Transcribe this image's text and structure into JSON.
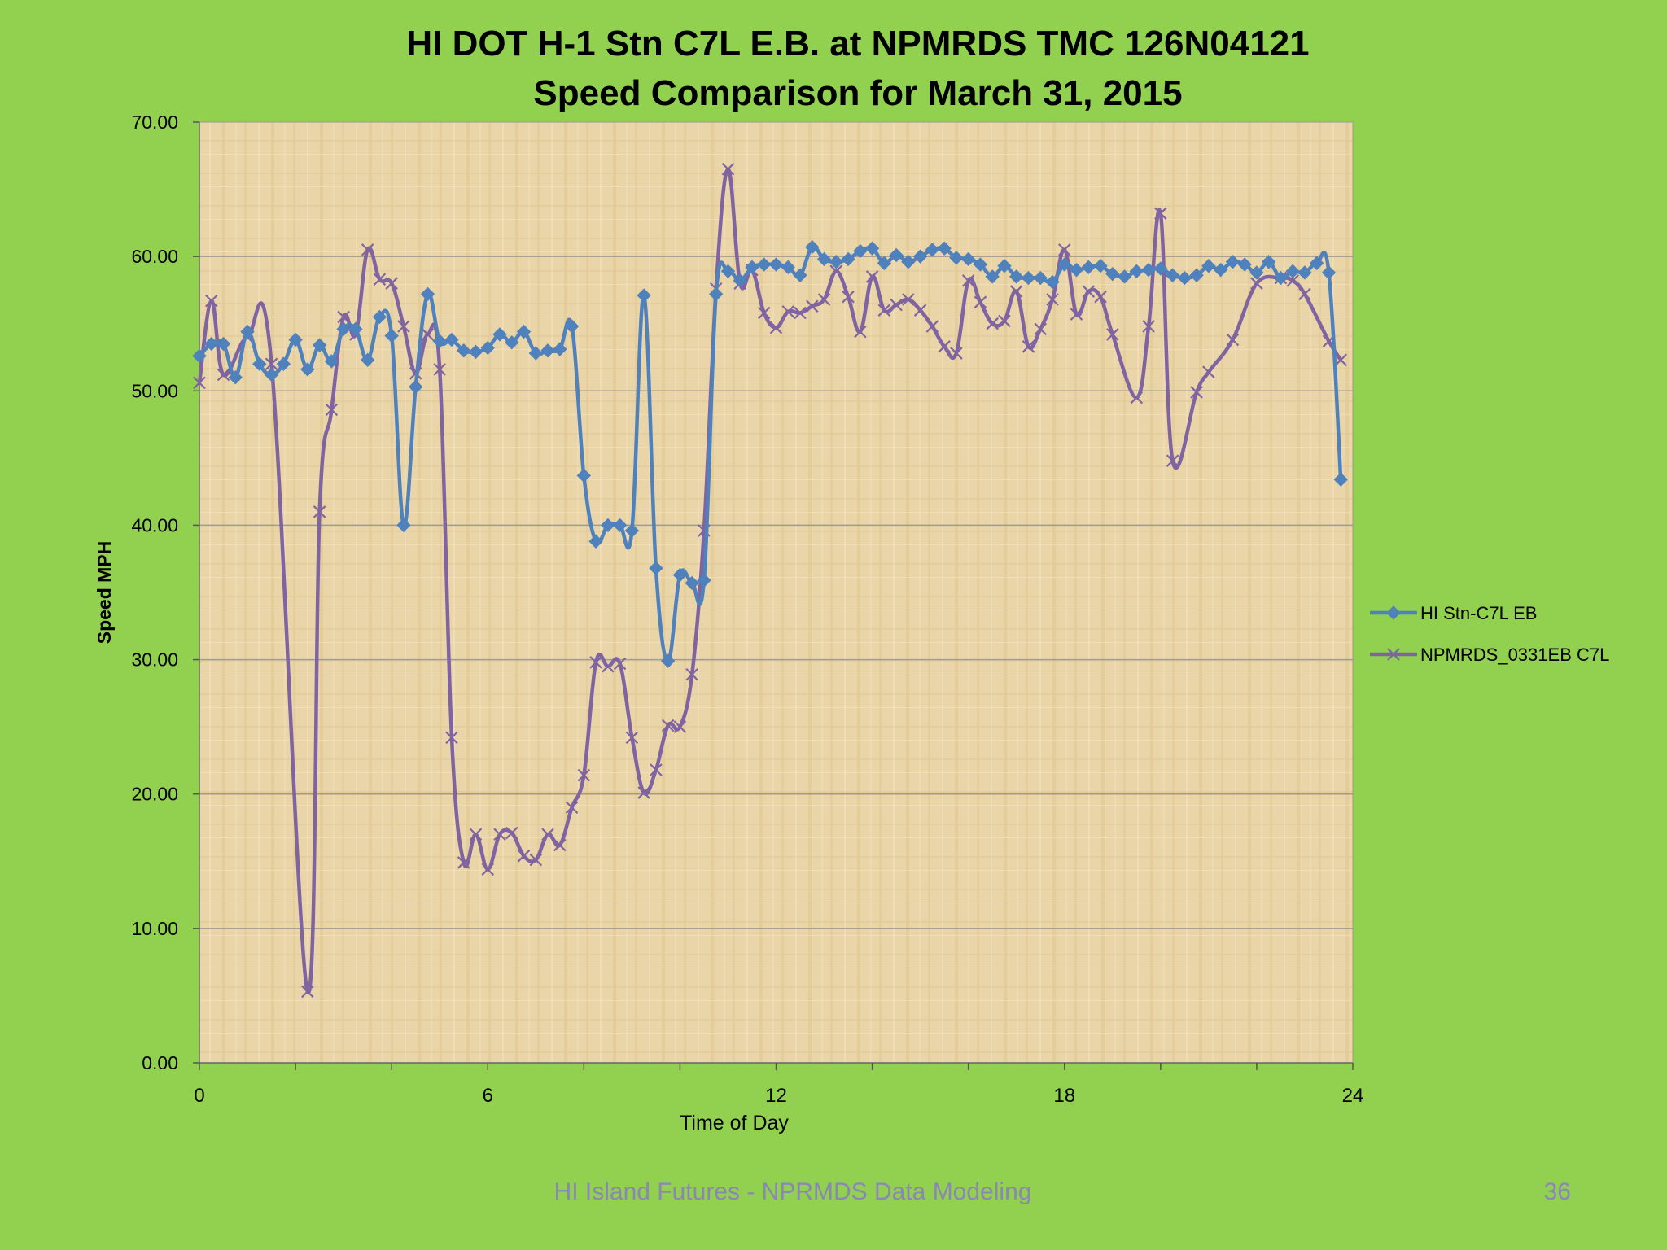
{
  "slide": {
    "footer": "HI Island Futures - NPRMDS Data Modeling",
    "page_number": "36"
  },
  "colors": {
    "background": "#92d050",
    "plot_area": "#ead5a8",
    "series_station": "#4f81bd",
    "series_npmrds": "#8064a2",
    "gridline": "#9e9a8e"
  },
  "chart_data": {
    "type": "line",
    "title": "HI DOT H-1 Stn C7L E.B. at NPMRDS TMC 126N04121",
    "subtitle": "Speed Comparison for March 31, 2015",
    "xlabel": "Time of Day",
    "ylabel": "Speed MPH",
    "xlim": [
      0,
      24
    ],
    "ylim": [
      0,
      70
    ],
    "x_ticks": [
      "0",
      "6",
      "12",
      "18",
      "24"
    ],
    "y_ticks": [
      "0.00",
      "10.00",
      "20.00",
      "30.00",
      "40.00",
      "50.00",
      "60.00",
      "70.00"
    ],
    "grid": true,
    "legend_position": "right",
    "series": [
      {
        "name": "HI Stn-C7L EB",
        "marker": "diamond",
        "points": [
          [
            0.0,
            52.6
          ],
          [
            0.25,
            53.5
          ],
          [
            0.5,
            53.5
          ],
          [
            0.75,
            51.0
          ],
          [
            1.0,
            54.4
          ],
          [
            1.25,
            52.0
          ],
          [
            1.5,
            51.2
          ],
          [
            1.75,
            52.0
          ],
          [
            2.0,
            53.8
          ],
          [
            2.25,
            51.6
          ],
          [
            2.5,
            53.4
          ],
          [
            2.75,
            52.2
          ],
          [
            3.0,
            54.6
          ],
          [
            3.25,
            54.6
          ],
          [
            3.5,
            52.3
          ],
          [
            3.75,
            55.5
          ],
          [
            4.0,
            54.1
          ],
          [
            4.25,
            40.0
          ],
          [
            4.5,
            50.3
          ],
          [
            4.75,
            57.2
          ],
          [
            5.0,
            53.7
          ],
          [
            5.25,
            53.8
          ],
          [
            5.5,
            53.0
          ],
          [
            5.75,
            52.9
          ],
          [
            6.0,
            53.2
          ],
          [
            6.25,
            54.2
          ],
          [
            6.5,
            53.6
          ],
          [
            6.75,
            54.4
          ],
          [
            7.0,
            52.8
          ],
          [
            7.25,
            53.0
          ],
          [
            7.5,
            53.1
          ],
          [
            7.75,
            54.8
          ],
          [
            8.0,
            43.7
          ],
          [
            8.25,
            38.8
          ],
          [
            8.5,
            40.0
          ],
          [
            8.75,
            40.0
          ],
          [
            9.0,
            39.6
          ],
          [
            9.25,
            57.1
          ],
          [
            9.5,
            36.8
          ],
          [
            9.75,
            29.9
          ],
          [
            10.0,
            36.3
          ],
          [
            10.25,
            35.7
          ],
          [
            10.5,
            35.9
          ],
          [
            10.75,
            57.2
          ],
          [
            11.0,
            58.9
          ],
          [
            11.25,
            58.2
          ],
          [
            11.5,
            59.2
          ],
          [
            11.75,
            59.4
          ],
          [
            12.0,
            59.4
          ],
          [
            12.25,
            59.2
          ],
          [
            12.5,
            58.6
          ],
          [
            12.75,
            60.7
          ],
          [
            13.0,
            59.8
          ],
          [
            13.25,
            59.6
          ],
          [
            13.5,
            59.8
          ],
          [
            13.75,
            60.4
          ],
          [
            14.0,
            60.6
          ],
          [
            14.25,
            59.5
          ],
          [
            14.5,
            60.1
          ],
          [
            14.75,
            59.6
          ],
          [
            15.0,
            60.0
          ],
          [
            15.25,
            60.5
          ],
          [
            15.5,
            60.6
          ],
          [
            15.75,
            59.9
          ],
          [
            16.0,
            59.8
          ],
          [
            16.25,
            59.4
          ],
          [
            16.5,
            58.5
          ],
          [
            16.75,
            59.3
          ],
          [
            17.0,
            58.5
          ],
          [
            17.25,
            58.4
          ],
          [
            17.5,
            58.4
          ],
          [
            17.75,
            58.1
          ],
          [
            18.0,
            59.4
          ],
          [
            18.25,
            59.0
          ],
          [
            18.5,
            59.2
          ],
          [
            18.75,
            59.3
          ],
          [
            19.0,
            58.7
          ],
          [
            19.25,
            58.5
          ],
          [
            19.5,
            58.9
          ],
          [
            19.75,
            59.0
          ],
          [
            20.0,
            59.1
          ],
          [
            20.25,
            58.6
          ],
          [
            20.5,
            58.4
          ],
          [
            20.75,
            58.6
          ],
          [
            21.0,
            59.3
          ],
          [
            21.25,
            59.0
          ],
          [
            21.5,
            59.6
          ],
          [
            21.75,
            59.4
          ],
          [
            22.0,
            58.8
          ],
          [
            22.25,
            59.6
          ],
          [
            22.5,
            58.4
          ],
          [
            22.75,
            58.9
          ],
          [
            23.0,
            58.8
          ],
          [
            23.25,
            59.5
          ],
          [
            23.5,
            58.8
          ],
          [
            23.75,
            43.4
          ]
        ]
      },
      {
        "name": "NPMRDS_0331EB C7L",
        "marker": "x",
        "points": [
          [
            0.0,
            50.6
          ],
          [
            0.25,
            56.7
          ],
          [
            0.5,
            51.2
          ],
          [
            1.0,
            54.0
          ],
          [
            1.5,
            52.0
          ],
          [
            2.25,
            5.3
          ],
          [
            2.5,
            41.0
          ],
          [
            2.75,
            48.6
          ],
          [
            3.0,
            55.5
          ],
          [
            3.25,
            54.2
          ],
          [
            3.5,
            60.5
          ],
          [
            3.75,
            58.3
          ],
          [
            4.0,
            58.0
          ],
          [
            4.25,
            54.8
          ],
          [
            4.5,
            51.3
          ],
          [
            4.75,
            54.2
          ],
          [
            5.0,
            51.6
          ],
          [
            5.25,
            24.2
          ],
          [
            5.5,
            14.9
          ],
          [
            5.75,
            17.0
          ],
          [
            6.0,
            14.4
          ],
          [
            6.25,
            17.0
          ],
          [
            6.5,
            17.1
          ],
          [
            6.75,
            15.4
          ],
          [
            7.0,
            15.1
          ],
          [
            7.25,
            17.0
          ],
          [
            7.5,
            16.2
          ],
          [
            7.75,
            19.0
          ],
          [
            8.0,
            21.4
          ],
          [
            8.25,
            29.8
          ],
          [
            8.5,
            29.5
          ],
          [
            8.75,
            29.7
          ],
          [
            9.0,
            24.2
          ],
          [
            9.25,
            20.1
          ],
          [
            9.5,
            21.8
          ],
          [
            9.75,
            25.1
          ],
          [
            10.0,
            25.0
          ],
          [
            10.25,
            28.9
          ],
          [
            10.5,
            39.6
          ],
          [
            10.75,
            57.6
          ],
          [
            11.0,
            66.5
          ],
          [
            11.25,
            58.0
          ],
          [
            11.5,
            59.0
          ],
          [
            11.75,
            55.8
          ],
          [
            12.0,
            54.7
          ],
          [
            12.25,
            55.9
          ],
          [
            12.5,
            55.8
          ],
          [
            12.75,
            56.3
          ],
          [
            13.0,
            56.8
          ],
          [
            13.25,
            58.9
          ],
          [
            13.5,
            57.0
          ],
          [
            13.75,
            54.4
          ],
          [
            14.0,
            58.5
          ],
          [
            14.25,
            56.0
          ],
          [
            14.5,
            56.4
          ],
          [
            14.75,
            56.8
          ],
          [
            15.0,
            56.0
          ],
          [
            15.25,
            54.8
          ],
          [
            15.5,
            53.3
          ],
          [
            15.75,
            52.8
          ],
          [
            16.0,
            58.2
          ],
          [
            16.25,
            56.6
          ],
          [
            16.5,
            55.0
          ],
          [
            16.75,
            55.2
          ],
          [
            17.0,
            57.4
          ],
          [
            17.25,
            53.3
          ],
          [
            17.5,
            54.6
          ],
          [
            17.75,
            56.8
          ],
          [
            18.0,
            60.5
          ],
          [
            18.25,
            55.7
          ],
          [
            18.5,
            57.4
          ],
          [
            18.75,
            57.0
          ],
          [
            19.0,
            54.2
          ],
          [
            19.5,
            49.5
          ],
          [
            19.75,
            54.8
          ],
          [
            20.0,
            63.2
          ],
          [
            20.25,
            44.8
          ],
          [
            20.75,
            49.9
          ],
          [
            21.0,
            51.4
          ],
          [
            21.5,
            53.8
          ],
          [
            22.0,
            58.0
          ],
          [
            22.5,
            58.4
          ],
          [
            22.75,
            58.2
          ],
          [
            23.0,
            57.2
          ],
          [
            23.5,
            53.7
          ],
          [
            23.75,
            52.3
          ]
        ]
      }
    ]
  }
}
